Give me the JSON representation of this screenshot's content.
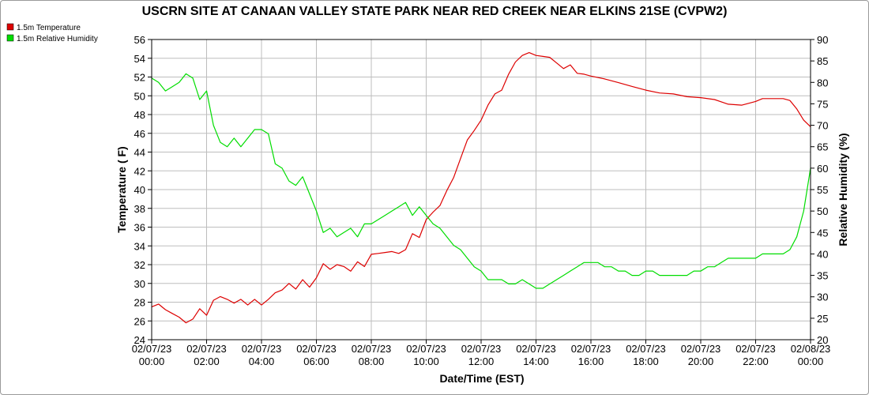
{
  "chart_data": {
    "type": "line",
    "title": "USCRN SITE AT CANAAN VALLEY STATE PARK NEAR RED CREEK NEAR ELKINS 21SE (CVPW2)",
    "xlabel": "Date/Time (EST)",
    "ylabel_left": "Temperature ( F)",
    "ylabel_right": "Relative Humidity (%)",
    "ylim_left": [
      24,
      56
    ],
    "ylim_right": [
      20,
      90
    ],
    "y_ticks_left": [
      24,
      26,
      28,
      30,
      32,
      34,
      36,
      38,
      40,
      42,
      44,
      46,
      48,
      50,
      52,
      54,
      56
    ],
    "y_ticks_right": [
      20,
      25,
      30,
      35,
      40,
      45,
      50,
      55,
      60,
      65,
      70,
      75,
      80,
      85,
      90
    ],
    "x_range_hours": [
      0,
      24
    ],
    "x_ticks": [
      {
        "hour": 0,
        "date": "02/07/23",
        "time": "00:00"
      },
      {
        "hour": 2,
        "date": "02/07/23",
        "time": "02:00"
      },
      {
        "hour": 4,
        "date": "02/07/23",
        "time": "04:00"
      },
      {
        "hour": 6,
        "date": "02/07/23",
        "time": "06:00"
      },
      {
        "hour": 8,
        "date": "02/07/23",
        "time": "08:00"
      },
      {
        "hour": 10,
        "date": "02/07/23",
        "time": "10:00"
      },
      {
        "hour": 12,
        "date": "02/07/23",
        "time": "12:00"
      },
      {
        "hour": 14,
        "date": "02/07/23",
        "time": "14:00"
      },
      {
        "hour": 16,
        "date": "02/07/23",
        "time": "16:00"
      },
      {
        "hour": 18,
        "date": "02/07/23",
        "time": "18:00"
      },
      {
        "hour": 20,
        "date": "02/07/23",
        "time": "20:00"
      },
      {
        "hour": 22,
        "date": "02/07/23",
        "time": "22:00"
      },
      {
        "hour": 24,
        "date": "02/08/23",
        "time": "00:00"
      }
    ],
    "grid": true,
    "legend_position": "top-left",
    "series": [
      {
        "name": "1.5m Temperature",
        "axis": "left",
        "color": "#dd0000",
        "points": [
          [
            0,
            27.5
          ],
          [
            0.25,
            27.8
          ],
          [
            0.5,
            27.2
          ],
          [
            0.75,
            26.8
          ],
          [
            1.0,
            26.4
          ],
          [
            1.25,
            25.8
          ],
          [
            1.5,
            26.2
          ],
          [
            1.75,
            27.3
          ],
          [
            2.0,
            26.6
          ],
          [
            2.25,
            28.2
          ],
          [
            2.5,
            28.6
          ],
          [
            2.75,
            28.3
          ],
          [
            3.0,
            27.9
          ],
          [
            3.25,
            28.3
          ],
          [
            3.5,
            27.7
          ],
          [
            3.75,
            28.3
          ],
          [
            4.0,
            27.7
          ],
          [
            4.25,
            28.3
          ],
          [
            4.5,
            29.0
          ],
          [
            4.75,
            29.3
          ],
          [
            5.0,
            30.0
          ],
          [
            5.25,
            29.4
          ],
          [
            5.5,
            30.4
          ],
          [
            5.75,
            29.6
          ],
          [
            6.0,
            30.6
          ],
          [
            6.25,
            32.1
          ],
          [
            6.5,
            31.5
          ],
          [
            6.75,
            32.0
          ],
          [
            7.0,
            31.8
          ],
          [
            7.25,
            31.3
          ],
          [
            7.5,
            32.3
          ],
          [
            7.75,
            31.8
          ],
          [
            8.0,
            33.1
          ],
          [
            8.25,
            33.2
          ],
          [
            8.5,
            33.3
          ],
          [
            8.75,
            33.4
          ],
          [
            9.0,
            33.2
          ],
          [
            9.25,
            33.6
          ],
          [
            9.5,
            35.3
          ],
          [
            9.75,
            34.9
          ],
          [
            10.0,
            36.8
          ],
          [
            10.25,
            37.6
          ],
          [
            10.5,
            38.3
          ],
          [
            10.75,
            39.9
          ],
          [
            11.0,
            41.3
          ],
          [
            11.25,
            43.3
          ],
          [
            11.5,
            45.3
          ],
          [
            11.75,
            46.3
          ],
          [
            12.0,
            47.4
          ],
          [
            12.25,
            49.0
          ],
          [
            12.5,
            50.2
          ],
          [
            12.75,
            50.6
          ],
          [
            13.0,
            52.3
          ],
          [
            13.25,
            53.6
          ],
          [
            13.5,
            54.3
          ],
          [
            13.75,
            54.6
          ],
          [
            14.0,
            54.3
          ],
          [
            14.25,
            54.2
          ],
          [
            14.5,
            54.1
          ],
          [
            14.75,
            53.5
          ],
          [
            15.0,
            52.9
          ],
          [
            15.25,
            53.3
          ],
          [
            15.5,
            52.4
          ],
          [
            15.75,
            52.3
          ],
          [
            16.0,
            52.1
          ],
          [
            16.5,
            51.8
          ],
          [
            17.0,
            51.4
          ],
          [
            17.5,
            51.0
          ],
          [
            18.0,
            50.6
          ],
          [
            18.5,
            50.3
          ],
          [
            19.0,
            50.2
          ],
          [
            19.5,
            49.9
          ],
          [
            20.0,
            49.8
          ],
          [
            20.5,
            49.6
          ],
          [
            21.0,
            49.1
          ],
          [
            21.5,
            49.0
          ],
          [
            22.0,
            49.4
          ],
          [
            22.25,
            49.7
          ],
          [
            22.5,
            49.7
          ],
          [
            23.0,
            49.7
          ],
          [
            23.25,
            49.5
          ],
          [
            23.5,
            48.6
          ],
          [
            23.75,
            47.4
          ],
          [
            24.0,
            46.7
          ]
        ]
      },
      {
        "name": "1.5m Relative Humidity",
        "axis": "right",
        "color": "#00dd00",
        "points": [
          [
            0,
            81
          ],
          [
            0.25,
            80
          ],
          [
            0.5,
            78
          ],
          [
            0.75,
            79
          ],
          [
            1.0,
            80
          ],
          [
            1.25,
            82
          ],
          [
            1.5,
            81
          ],
          [
            1.75,
            76
          ],
          [
            2.0,
            78
          ],
          [
            2.25,
            70
          ],
          [
            2.5,
            66
          ],
          [
            2.75,
            65
          ],
          [
            3.0,
            67
          ],
          [
            3.25,
            65
          ],
          [
            3.5,
            67
          ],
          [
            3.75,
            69
          ],
          [
            4.0,
            69
          ],
          [
            4.25,
            68
          ],
          [
            4.5,
            61
          ],
          [
            4.75,
            60
          ],
          [
            5.0,
            57
          ],
          [
            5.25,
            56
          ],
          [
            5.5,
            58
          ],
          [
            5.75,
            54
          ],
          [
            6.0,
            50
          ],
          [
            6.25,
            45
          ],
          [
            6.5,
            46
          ],
          [
            6.75,
            44
          ],
          [
            7.0,
            45
          ],
          [
            7.25,
            46
          ],
          [
            7.5,
            44
          ],
          [
            7.75,
            47
          ],
          [
            8.0,
            47
          ],
          [
            8.25,
            48
          ],
          [
            8.5,
            49
          ],
          [
            8.75,
            50
          ],
          [
            9.0,
            51
          ],
          [
            9.25,
            52
          ],
          [
            9.5,
            49
          ],
          [
            9.75,
            51
          ],
          [
            10.0,
            49
          ],
          [
            10.25,
            47
          ],
          [
            10.5,
            46
          ],
          [
            10.75,
            44
          ],
          [
            11.0,
            42
          ],
          [
            11.25,
            41
          ],
          [
            11.5,
            39
          ],
          [
            11.75,
            37
          ],
          [
            12.0,
            36
          ],
          [
            12.25,
            34
          ],
          [
            12.5,
            34
          ],
          [
            12.75,
            34
          ],
          [
            13.0,
            33
          ],
          [
            13.25,
            33
          ],
          [
            13.5,
            34
          ],
          [
            13.75,
            33
          ],
          [
            14.0,
            32
          ],
          [
            14.25,
            32
          ],
          [
            14.5,
            33
          ],
          [
            14.75,
            34
          ],
          [
            15.0,
            35
          ],
          [
            15.25,
            36
          ],
          [
            15.5,
            37
          ],
          [
            15.75,
            38
          ],
          [
            16.0,
            38
          ],
          [
            16.25,
            38
          ],
          [
            16.5,
            37
          ],
          [
            16.75,
            37
          ],
          [
            17.0,
            36
          ],
          [
            17.25,
            36
          ],
          [
            17.5,
            35
          ],
          [
            17.75,
            35
          ],
          [
            18.0,
            36
          ],
          [
            18.25,
            36
          ],
          [
            18.5,
            35
          ],
          [
            18.75,
            35
          ],
          [
            19.0,
            35
          ],
          [
            19.25,
            35
          ],
          [
            19.5,
            35
          ],
          [
            19.75,
            36
          ],
          [
            20.0,
            36
          ],
          [
            20.25,
            37
          ],
          [
            20.5,
            37
          ],
          [
            20.75,
            38
          ],
          [
            21.0,
            39
          ],
          [
            21.25,
            39
          ],
          [
            21.5,
            39
          ],
          [
            21.75,
            39
          ],
          [
            22.0,
            39
          ],
          [
            22.25,
            40
          ],
          [
            22.5,
            40
          ],
          [
            22.75,
            40
          ],
          [
            23.0,
            40
          ],
          [
            23.25,
            41
          ],
          [
            23.5,
            44
          ],
          [
            23.75,
            50
          ],
          [
            24.0,
            60
          ]
        ]
      }
    ]
  }
}
